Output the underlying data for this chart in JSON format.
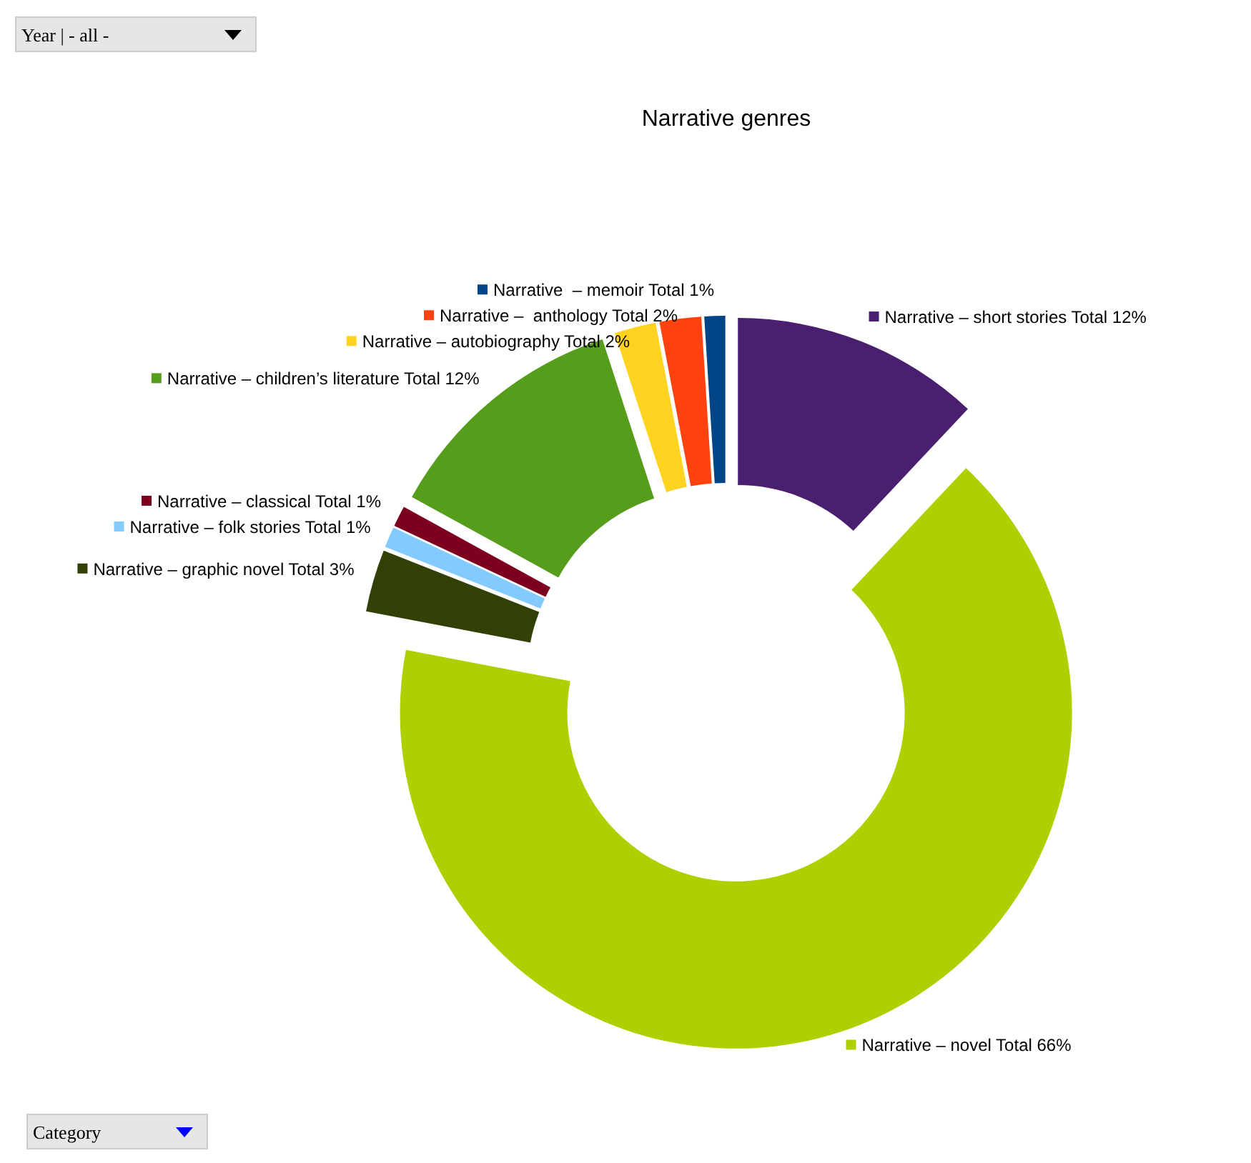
{
  "chart_data": {
    "type": "donut",
    "title": "Narrative genres",
    "categories": [
      "Narrative – short stories",
      "Narrative – novel",
      "Narrative – graphic novel",
      "Narrative – folk stories",
      "Narrative – classical",
      "Narrative – children’s literature",
      "Narrative – autobiography",
      "Narrative –  anthology",
      "Narrative  – memoir"
    ],
    "values": [
      12,
      66,
      3,
      1,
      1,
      12,
      2,
      2,
      1
    ],
    "value_labels": [
      "Total 12%",
      "Total 66%",
      "Total 3%",
      "Total 1%",
      "Total 1%",
      "Total 12%",
      "Total 2%",
      "Total 2%",
      "Total 1%"
    ],
    "colors": [
      "#4b1f6f",
      "#aecf00",
      "#314004",
      "#83caff",
      "#7e0021",
      "#579d1c",
      "#ffd320",
      "#ff420e",
      "#004586"
    ],
    "legend": "top left",
    "annotations": [
      "Year | - all -",
      "Category"
    ]
  }
}
